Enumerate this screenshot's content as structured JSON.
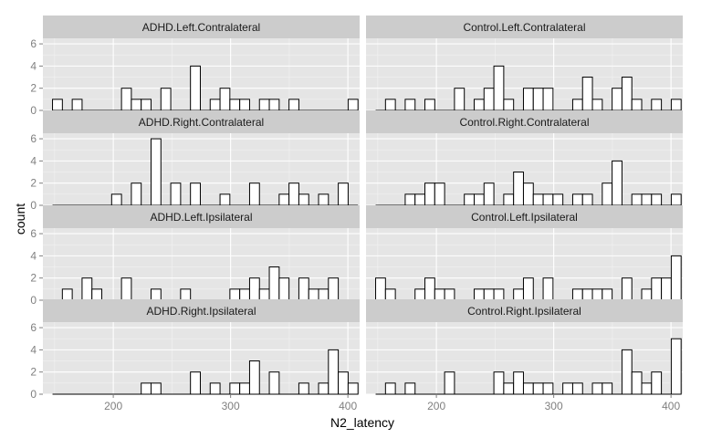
{
  "chart_data": {
    "type": "bar",
    "subtype": "faceted-histogram",
    "xlabel": "N2_latency",
    "ylabel": "count",
    "xlim": [
      140,
      410
    ],
    "ylim": [
      0,
      6.5
    ],
    "xticks": [
      200,
      300,
      400
    ],
    "yticks": [
      0,
      2,
      4,
      6
    ],
    "bin_width": 8.4,
    "bin_start": 148.2,
    "n_bins": 31,
    "grid": true,
    "colors": {
      "panel_bg": "#e5e5e5",
      "grid_major": "#ffffff",
      "grid_minor": "#f2f2f2",
      "strip_bg": "#cccccc",
      "bar_fill": "#ffffff",
      "bar_stroke": "#000000",
      "tick_text": "#7f7f7f"
    },
    "panels": [
      {
        "name": "ADHD.Left.Contralateral",
        "row": 0,
        "col": 0,
        "counts": [
          1,
          0,
          1,
          0,
          0,
          0,
          0,
          2,
          1,
          1,
          0,
          2,
          0,
          0,
          4,
          0,
          1,
          2,
          1,
          1,
          0,
          1,
          1,
          0,
          1,
          0,
          0,
          0,
          0,
          0,
          1
        ]
      },
      {
        "name": "Control.Left.Contralateral",
        "row": 0,
        "col": 1,
        "counts": [
          0,
          1,
          0,
          1,
          0,
          1,
          0,
          0,
          2,
          0,
          1,
          2,
          4,
          1,
          0,
          2,
          2,
          2,
          0,
          0,
          1,
          3,
          1,
          0,
          2,
          3,
          1,
          0,
          1,
          0,
          1
        ]
      },
      {
        "name": "ADHD.Right.Contralateral",
        "row": 1,
        "col": 0,
        "counts": [
          0,
          0,
          0,
          0,
          0,
          0,
          1,
          0,
          2,
          0,
          6,
          0,
          2,
          0,
          2,
          0,
          0,
          1,
          0,
          0,
          2,
          0,
          0,
          1,
          2,
          1,
          0,
          1,
          0,
          2,
          0
        ]
      },
      {
        "name": "Control.Right.Contralateral",
        "row": 1,
        "col": 1,
        "counts": [
          0,
          0,
          0,
          1,
          1,
          2,
          2,
          0,
          0,
          1,
          1,
          2,
          0,
          1,
          3,
          2,
          1,
          1,
          1,
          0,
          1,
          1,
          0,
          2,
          4,
          0,
          1,
          1,
          1,
          0,
          1
        ]
      },
      {
        "name": "ADHD.Left.Ipsilateral",
        "row": 2,
        "col": 0,
        "counts": [
          0,
          1,
          0,
          2,
          1,
          0,
          0,
          2,
          0,
          0,
          1,
          0,
          0,
          1,
          0,
          0,
          0,
          0,
          1,
          1,
          2,
          1,
          3,
          2,
          0,
          2,
          1,
          1,
          2,
          0,
          0
        ]
      },
      {
        "name": "Control.Left.Ipsilateral",
        "row": 2,
        "col": 1,
        "counts": [
          2,
          1,
          0,
          0,
          1,
          2,
          1,
          1,
          0,
          0,
          1,
          1,
          1,
          0,
          1,
          2,
          0,
          2,
          0,
          0,
          1,
          1,
          1,
          1,
          0,
          2,
          0,
          1,
          2,
          2,
          4
        ]
      },
      {
        "name": "ADHD.Right.Ipsilateral",
        "row": 3,
        "col": 0,
        "counts": [
          0,
          0,
          0,
          0,
          0,
          0,
          0,
          0,
          0,
          1,
          1,
          0,
          0,
          0,
          2,
          0,
          1,
          0,
          1,
          1,
          3,
          0,
          2,
          0,
          0,
          1,
          0,
          1,
          4,
          2,
          1
        ]
      },
      {
        "name": "Control.Right.Ipsilateral",
        "row": 3,
        "col": 1,
        "counts": [
          0,
          1,
          0,
          1,
          0,
          0,
          0,
          2,
          0,
          0,
          0,
          0,
          2,
          1,
          2,
          1,
          1,
          1,
          0,
          1,
          1,
          0,
          1,
          1,
          0,
          4,
          2,
          1,
          2,
          0,
          5
        ]
      }
    ]
  }
}
